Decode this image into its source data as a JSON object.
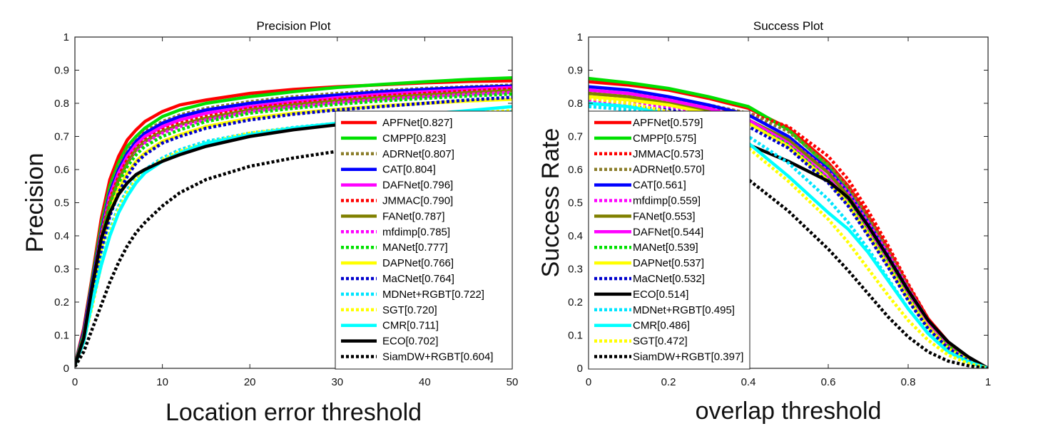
{
  "chart_data": [
    {
      "type": "line",
      "title": "Precision Plot",
      "xlabel": "Location error threshold",
      "ylabel": "Precision",
      "xlim": [
        0,
        50
      ],
      "ylim": [
        0,
        1
      ],
      "xticks": [
        "0",
        "10",
        "20",
        "30",
        "40",
        "50"
      ],
      "yticks": [
        "0",
        "0.1",
        "0.2",
        "0.3",
        "0.4",
        "0.5",
        "0.6",
        "0.7",
        "0.8",
        "0.9",
        "1"
      ],
      "legend_position": "bottom-right",
      "grid": false,
      "x": [
        0,
        1,
        2,
        3,
        4,
        5,
        6,
        7,
        8,
        10,
        12,
        15,
        20,
        25,
        30,
        35,
        40,
        45,
        50
      ],
      "series": [
        {
          "name": "APFNet[0.827]",
          "color": "#ff0000",
          "style": "solid",
          "values": [
            0.01,
            0.12,
            0.28,
            0.45,
            0.57,
            0.64,
            0.69,
            0.72,
            0.745,
            0.775,
            0.795,
            0.81,
            0.83,
            0.842,
            0.85,
            0.856,
            0.862,
            0.866,
            0.868
          ]
        },
        {
          "name": "CMPP[0.823]",
          "color": "#00e000",
          "style": "solid",
          "values": [
            0.01,
            0.11,
            0.27,
            0.43,
            0.55,
            0.62,
            0.67,
            0.7,
            0.725,
            0.76,
            0.78,
            0.8,
            0.82,
            0.835,
            0.848,
            0.857,
            0.865,
            0.872,
            0.877
          ]
        },
        {
          "name": "ADRNet[0.807]",
          "color": "#8b7d2a",
          "style": "dotted",
          "values": [
            0.01,
            0.11,
            0.26,
            0.42,
            0.54,
            0.61,
            0.66,
            0.69,
            0.715,
            0.745,
            0.765,
            0.785,
            0.805,
            0.82,
            0.83,
            0.838,
            0.845,
            0.85,
            0.855
          ]
        },
        {
          "name": "CAT[0.804]",
          "color": "#0000ff",
          "style": "solid",
          "values": [
            0.01,
            0.11,
            0.26,
            0.41,
            0.53,
            0.6,
            0.65,
            0.685,
            0.71,
            0.74,
            0.76,
            0.78,
            0.8,
            0.815,
            0.825,
            0.835,
            0.842,
            0.848,
            0.852
          ]
        },
        {
          "name": "DAFNet[0.796]",
          "color": "#ff00ff",
          "style": "solid",
          "values": [
            0.01,
            0.1,
            0.25,
            0.4,
            0.52,
            0.59,
            0.64,
            0.675,
            0.7,
            0.73,
            0.75,
            0.77,
            0.79,
            0.805,
            0.817,
            0.827,
            0.835,
            0.842,
            0.848
          ]
        },
        {
          "name": "JMMAC[0.790]",
          "color": "#ff0000",
          "style": "dotted",
          "values": [
            0.01,
            0.1,
            0.25,
            0.4,
            0.51,
            0.58,
            0.63,
            0.665,
            0.69,
            0.72,
            0.74,
            0.76,
            0.785,
            0.8,
            0.812,
            0.822,
            0.83,
            0.837,
            0.843
          ]
        },
        {
          "name": "FANet[0.787]",
          "color": "#808000",
          "style": "solid",
          "values": [
            0.01,
            0.1,
            0.24,
            0.39,
            0.5,
            0.57,
            0.62,
            0.66,
            0.685,
            0.715,
            0.735,
            0.755,
            0.78,
            0.795,
            0.807,
            0.817,
            0.825,
            0.832,
            0.838
          ]
        },
        {
          "name": "mfdimp[0.785]",
          "color": "#ff00ff",
          "style": "dotted",
          "values": [
            0.01,
            0.1,
            0.24,
            0.38,
            0.49,
            0.56,
            0.61,
            0.65,
            0.68,
            0.71,
            0.73,
            0.75,
            0.775,
            0.79,
            0.802,
            0.812,
            0.82,
            0.827,
            0.833
          ]
        },
        {
          "name": "MANet[0.777]",
          "color": "#00e000",
          "style": "dotted",
          "values": [
            0.01,
            0.1,
            0.24,
            0.38,
            0.49,
            0.56,
            0.61,
            0.645,
            0.67,
            0.7,
            0.72,
            0.745,
            0.77,
            0.785,
            0.797,
            0.807,
            0.815,
            0.822,
            0.828
          ]
        },
        {
          "name": "DAPNet[0.766]",
          "color": "#ffff00",
          "style": "solid",
          "values": [
            0.01,
            0.09,
            0.22,
            0.36,
            0.47,
            0.54,
            0.59,
            0.625,
            0.65,
            0.685,
            0.705,
            0.73,
            0.755,
            0.77,
            0.782,
            0.792,
            0.8,
            0.807,
            0.812
          ]
        },
        {
          "name": "MaCNet[0.764]",
          "color": "#0000cc",
          "style": "dotted",
          "values": [
            0.01,
            0.09,
            0.22,
            0.35,
            0.46,
            0.53,
            0.58,
            0.62,
            0.645,
            0.68,
            0.7,
            0.725,
            0.75,
            0.767,
            0.78,
            0.79,
            0.8,
            0.81,
            0.818
          ]
        },
        {
          "name": "MDNet+RGBT[0.722]",
          "color": "#00e5ff",
          "style": "dotted",
          "values": [
            0.01,
            0.08,
            0.2,
            0.32,
            0.42,
            0.49,
            0.54,
            0.575,
            0.6,
            0.635,
            0.66,
            0.685,
            0.71,
            0.727,
            0.74,
            0.75,
            0.76,
            0.768,
            0.775
          ]
        },
        {
          "name": "SGT[0.720]",
          "color": "#ffff00",
          "style": "dotted",
          "values": [
            0.01,
            0.08,
            0.19,
            0.31,
            0.41,
            0.48,
            0.53,
            0.57,
            0.595,
            0.63,
            0.655,
            0.68,
            0.71,
            0.725,
            0.74,
            0.752,
            0.762,
            0.77,
            0.778
          ]
        },
        {
          "name": "CMR[0.711]",
          "color": "#00ffff",
          "style": "solid",
          "values": [
            0.01,
            0.08,
            0.2,
            0.31,
            0.4,
            0.47,
            0.52,
            0.56,
            0.59,
            0.625,
            0.65,
            0.68,
            0.705,
            0.725,
            0.74,
            0.755,
            0.767,
            0.778,
            0.79
          ]
        },
        {
          "name": "ECO[0.702]",
          "color": "#000000",
          "style": "solid",
          "values": [
            0.01,
            0.09,
            0.25,
            0.39,
            0.47,
            0.525,
            0.56,
            0.585,
            0.6,
            0.625,
            0.645,
            0.67,
            0.7,
            0.72,
            0.735,
            0.745,
            0.752,
            0.758,
            0.762
          ]
        },
        {
          "name": "SiamDW+RGBT[0.604]",
          "color": "#000000",
          "style": "dotted",
          "values": [
            0.005,
            0.05,
            0.12,
            0.19,
            0.26,
            0.32,
            0.37,
            0.41,
            0.44,
            0.49,
            0.53,
            0.57,
            0.61,
            0.635,
            0.655,
            0.668,
            0.678,
            0.686,
            0.692
          ]
        }
      ]
    },
    {
      "type": "line",
      "title": "Success Plot",
      "xlabel": "overlap threshold",
      "ylabel": "Success Rate",
      "xlim": [
        0,
        1
      ],
      "ylim": [
        0,
        1
      ],
      "xticks": [
        "0",
        "0.2",
        "0.4",
        "0.6",
        "0.8",
        "1"
      ],
      "yticks": [
        "0",
        "0.1",
        "0.2",
        "0.3",
        "0.4",
        "0.5",
        "0.6",
        "0.7",
        "0.8",
        "0.9",
        "1"
      ],
      "legend_position": "bottom-left",
      "grid": false,
      "x": [
        0,
        0.1,
        0.2,
        0.3,
        0.4,
        0.5,
        0.6,
        0.65,
        0.7,
        0.75,
        0.8,
        0.85,
        0.9,
        0.95,
        1
      ],
      "series": [
        {
          "name": "APFNet[0.579]",
          "color": "#ff0000",
          "style": "solid",
          "values": [
            0.865,
            0.855,
            0.84,
            0.815,
            0.785,
            0.725,
            0.62,
            0.55,
            0.46,
            0.36,
            0.25,
            0.15,
            0.08,
            0.03,
            0.0
          ]
        },
        {
          "name": "CMPP[0.575]",
          "color": "#00e000",
          "style": "solid",
          "values": [
            0.875,
            0.862,
            0.845,
            0.82,
            0.79,
            0.72,
            0.61,
            0.535,
            0.445,
            0.345,
            0.24,
            0.145,
            0.075,
            0.03,
            0.0
          ]
        },
        {
          "name": "JMMAC[0.573]",
          "color": "#ff0000",
          "style": "dotted",
          "values": [
            0.83,
            0.82,
            0.81,
            0.79,
            0.77,
            0.73,
            0.64,
            0.57,
            0.475,
            0.37,
            0.255,
            0.15,
            0.075,
            0.03,
            0.0
          ]
        },
        {
          "name": "ADRNet[0.570]",
          "color": "#8b7d2a",
          "style": "dotted",
          "values": [
            0.84,
            0.83,
            0.815,
            0.795,
            0.77,
            0.715,
            0.615,
            0.545,
            0.455,
            0.355,
            0.245,
            0.145,
            0.075,
            0.03,
            0.0
          ]
        },
        {
          "name": "CAT[0.561]",
          "color": "#0000ff",
          "style": "solid",
          "values": [
            0.85,
            0.84,
            0.82,
            0.795,
            0.765,
            0.7,
            0.6,
            0.53,
            0.44,
            0.34,
            0.235,
            0.14,
            0.07,
            0.028,
            0.0
          ]
        },
        {
          "name": "mfdimp[0.559]",
          "color": "#ff00ff",
          "style": "dotted",
          "values": [
            0.81,
            0.8,
            0.79,
            0.77,
            0.745,
            0.69,
            0.595,
            0.53,
            0.44,
            0.345,
            0.24,
            0.145,
            0.075,
            0.03,
            0.0
          ]
        },
        {
          "name": "FANet[0.553]",
          "color": "#808000",
          "style": "solid",
          "values": [
            0.83,
            0.82,
            0.8,
            0.78,
            0.75,
            0.69,
            0.59,
            0.52,
            0.43,
            0.335,
            0.23,
            0.135,
            0.07,
            0.028,
            0.0
          ]
        },
        {
          "name": "DAFNet[0.544]",
          "color": "#ff00ff",
          "style": "solid",
          "values": [
            0.84,
            0.83,
            0.81,
            0.785,
            0.75,
            0.68,
            0.575,
            0.505,
            0.415,
            0.32,
            0.22,
            0.13,
            0.065,
            0.025,
            0.0
          ]
        },
        {
          "name": "MANet[0.539]",
          "color": "#00e000",
          "style": "dotted",
          "values": [
            0.82,
            0.81,
            0.795,
            0.77,
            0.74,
            0.675,
            0.57,
            0.5,
            0.41,
            0.315,
            0.215,
            0.125,
            0.065,
            0.025,
            0.0
          ]
        },
        {
          "name": "DAPNet[0.537]",
          "color": "#ffff00",
          "style": "solid",
          "values": [
            0.82,
            0.81,
            0.795,
            0.77,
            0.74,
            0.67,
            0.565,
            0.495,
            0.405,
            0.31,
            0.21,
            0.125,
            0.06,
            0.025,
            0.0
          ]
        },
        {
          "name": "MaCNet[0.532]",
          "color": "#0000cc",
          "style": "dotted",
          "values": [
            0.8,
            0.79,
            0.78,
            0.76,
            0.73,
            0.665,
            0.56,
            0.49,
            0.4,
            0.305,
            0.205,
            0.12,
            0.06,
            0.023,
            0.0
          ]
        },
        {
          "name": "ECO[0.514]",
          "color": "#000000",
          "style": "solid",
          "values": [
            0.77,
            0.76,
            0.745,
            0.72,
            0.675,
            0.625,
            0.565,
            0.515,
            0.43,
            0.335,
            0.235,
            0.145,
            0.08,
            0.035,
            0.0
          ]
        },
        {
          "name": "MDNet+RGBT[0.495]",
          "color": "#00e5ff",
          "style": "dotted",
          "values": [
            0.79,
            0.78,
            0.765,
            0.74,
            0.7,
            0.62,
            0.51,
            0.44,
            0.36,
            0.27,
            0.18,
            0.105,
            0.05,
            0.02,
            0.0
          ]
        },
        {
          "name": "CMR[0.486]",
          "color": "#00ffff",
          "style": "solid",
          "values": [
            0.8,
            0.79,
            0.77,
            0.73,
            0.68,
            0.58,
            0.47,
            0.42,
            0.35,
            0.265,
            0.18,
            0.105,
            0.05,
            0.02,
            0.0
          ]
        },
        {
          "name": "SGT[0.472]",
          "color": "#ffff00",
          "style": "dotted",
          "values": [
            0.815,
            0.8,
            0.775,
            0.73,
            0.665,
            0.565,
            0.45,
            0.38,
            0.3,
            0.22,
            0.145,
            0.085,
            0.04,
            0.015,
            0.0
          ]
        },
        {
          "name": "SiamDW+RGBT[0.397]",
          "color": "#000000",
          "style": "dotted",
          "values": [
            0.72,
            0.7,
            0.675,
            0.63,
            0.57,
            0.475,
            0.36,
            0.295,
            0.225,
            0.155,
            0.095,
            0.05,
            0.022,
            0.008,
            0.0
          ]
        }
      ]
    }
  ]
}
